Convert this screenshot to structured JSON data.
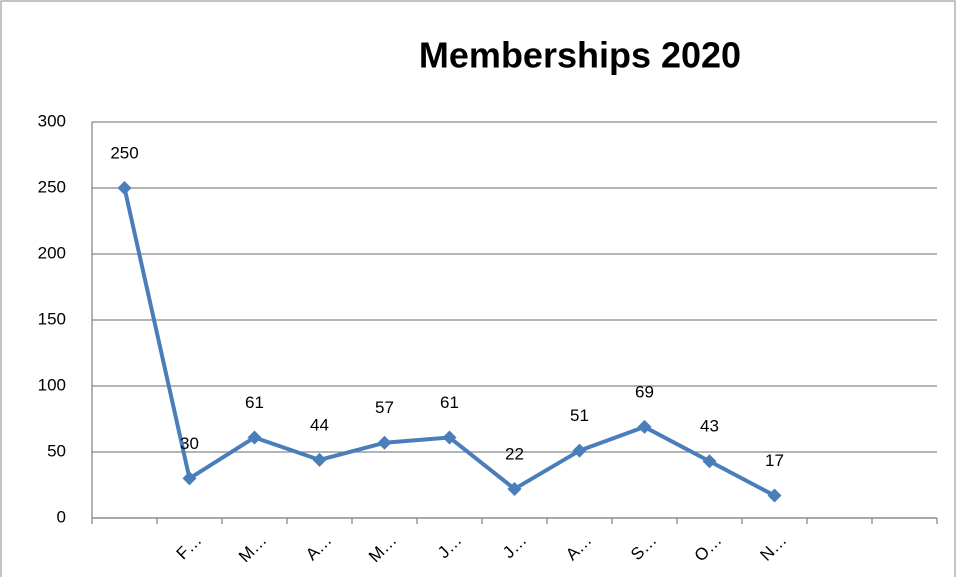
{
  "chart_data": {
    "type": "line",
    "title": "Memberships 2020",
    "categories": [
      null,
      "F…",
      "M…",
      "A…",
      "M…",
      "J…",
      "J…",
      "A…",
      "S…",
      "O…",
      "N…",
      null,
      null
    ],
    "values": [
      250,
      30,
      61,
      44,
      57,
      61,
      22,
      51,
      69,
      43,
      17,
      null,
      null
    ],
    "color": "#4a7ebb",
    "ylim": [
      0,
      300
    ],
    "yticks": [
      0,
      50,
      100,
      150,
      200,
      250,
      300
    ],
    "grid": true
  }
}
